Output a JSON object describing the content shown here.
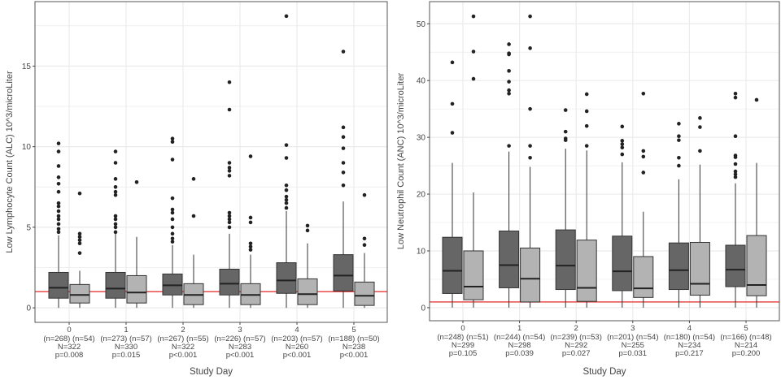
{
  "colors": {
    "group_a": "#666666",
    "group_b": "#b3b3b3",
    "reference_line": "#e84a4a",
    "outlier": "#222222",
    "grid": "#ebebeb"
  },
  "chart_data": [
    {
      "type": "boxplot",
      "ylabel": "Low Lymphocyte Count (ALC) 10^3/microLiter",
      "xlabel": "Study Day",
      "ylim": [
        -0.9,
        19
      ],
      "yticks": [
        0,
        5,
        10,
        15
      ],
      "grid": true,
      "reference_line": 1,
      "categories": [
        "0",
        "1",
        "2",
        "3",
        "4",
        "5"
      ],
      "group_labels": [
        "(n=268) (n=54)",
        "(n=273) (n=57)",
        "(n=267) (n=55)",
        "(n=226) (n=57)",
        "(n=203) (n=57)",
        "(n=188) (n=50)"
      ],
      "totals": [
        "N=322",
        "N=330",
        "N=322",
        "N=283",
        "N=260",
        "N=238"
      ],
      "pvalues": [
        "p=0.008",
        "p=0.015",
        "p<0.001",
        "p<0.001",
        "p<0.001",
        "p<0.001"
      ],
      "series": [
        {
          "boxes": [
            {
              "min": 0,
              "q1": 0.6,
              "median": 1.25,
              "q3": 2.2,
              "max": 4.5,
              "outliers": [
                4.7,
                4.9,
                5.2,
                5.5,
                5.7,
                6.0,
                6.3,
                6.5,
                7.2,
                7.7,
                8.1,
                8.8,
                9.7,
                10.2
              ]
            },
            {
              "min": 0,
              "q1": 0.6,
              "median": 1.2,
              "q3": 2.2,
              "max": 4.6,
              "outliers": [
                4.7,
                5.0,
                5.2,
                5.5,
                5.7,
                7.0,
                7.2,
                7.5,
                8.0,
                9.0,
                9.7
              ]
            },
            {
              "min": 0,
              "q1": 0.8,
              "median": 1.4,
              "q3": 2.1,
              "max": 3.9,
              "outliers": [
                4.1,
                4.3,
                4.6,
                5.0,
                5.5,
                5.9,
                6.1,
                6.8,
                9.2,
                10.3,
                10.5
              ]
            },
            {
              "min": 0,
              "q1": 0.8,
              "median": 1.5,
              "q3": 2.4,
              "max": 4.6,
              "outliers": [
                5.0,
                5.3,
                5.5,
                5.7,
                5.9,
                8.2,
                8.5,
                8.7,
                9.0,
                12.3,
                14.0
              ]
            },
            {
              "min": 0,
              "q1": 0.9,
              "median": 1.7,
              "q3": 2.8,
              "max": 6.0,
              "outliers": [
                6.2,
                6.5,
                6.7,
                6.9,
                7.3,
                7.6,
                9.3,
                10.1,
                18.1
              ]
            },
            {
              "min": 0,
              "q1": 1.05,
              "median": 2.0,
              "q3": 3.3,
              "max": 6.6,
              "outliers": [
                7.6,
                8.4,
                9.0,
                9.9,
                10.6,
                11.2,
                15.9
              ]
            }
          ]
        },
        {
          "boxes": [
            {
              "min": 0,
              "q1": 0.3,
              "median": 0.8,
              "q3": 1.45,
              "max": 2.3,
              "outliers": [
                3.4,
                4.0,
                4.2,
                4.4,
                4.6,
                7.1
              ]
            },
            {
              "min": 0,
              "q1": 0.3,
              "median": 0.95,
              "q3": 2.0,
              "max": 4.4,
              "outliers": [
                7.8
              ]
            },
            {
              "min": 0,
              "q1": 0.2,
              "median": 0.8,
              "q3": 1.5,
              "max": 3.3,
              "outliers": [
                5.7,
                8.0
              ]
            },
            {
              "min": 0,
              "q1": 0.2,
              "median": 0.8,
              "q3": 1.5,
              "max": 3.3,
              "outliers": [
                3.6,
                3.8,
                4.0,
                5.3,
                5.6,
                9.4
              ]
            },
            {
              "min": 0,
              "q1": 0.2,
              "median": 0.85,
              "q3": 1.8,
              "max": 4.0,
              "outliers": [
                4.8,
                5.1
              ]
            },
            {
              "min": 0,
              "q1": 0.15,
              "median": 0.75,
              "q3": 1.6,
              "max": 3.4,
              "outliers": [
                3.9,
                4.3,
                7.0
              ]
            }
          ]
        }
      ]
    },
    {
      "type": "boxplot",
      "ylabel": "Low Neutrophil Count (ANC) 10^3/microLiter",
      "xlabel": "Study Day",
      "ylim": [
        -2.3,
        53.9
      ],
      "yticks": [
        0,
        10,
        20,
        30,
        40,
        50
      ],
      "grid": true,
      "reference_line": 1,
      "categories": [
        "0",
        "1",
        "2",
        "3",
        "4",
        "5"
      ],
      "group_labels": [
        "(n=248) (n=51)",
        "(n=244) (n=54)",
        "(n=239) (n=53)",
        "(n=201) (n=54)",
        "(n=180) (n=54)",
        "(n=166) (n=48)"
      ],
      "totals": [
        "N=299",
        "N=298",
        "N=292",
        "N=255",
        "N=234",
        "N=214"
      ],
      "pvalues": [
        "p=0.105",
        "p=0.039",
        "p=0.027",
        "p=0.031",
        "p=0.217",
        "p=0.200"
      ],
      "series": [
        {
          "boxes": [
            {
              "min": 0,
              "q1": 2.5,
              "median": 6.5,
              "q3": 12.4,
              "max": 25.5,
              "outliers": [
                30.8,
                35.9,
                43.2
              ]
            },
            {
              "min": 0,
              "q1": 3.5,
              "median": 7.5,
              "q3": 13.5,
              "max": 27.5,
              "outliers": [
                28.5,
                37.7,
                38.3,
                39.8,
                41.7,
                44.6,
                44.8,
                46.4
              ]
            },
            {
              "min": 0,
              "q1": 3.2,
              "median": 7.4,
              "q3": 13.7,
              "max": 28.0,
              "outliers": [
                29.5,
                29.8,
                31.0,
                34.8
              ]
            },
            {
              "min": 0,
              "q1": 3.0,
              "median": 6.4,
              "q3": 12.6,
              "max": 25.6,
              "outliers": [
                27.0,
                28.2,
                28.8,
                29.4,
                31.9
              ]
            },
            {
              "min": 0,
              "q1": 3.2,
              "median": 6.6,
              "q3": 11.4,
              "max": 22.6,
              "outliers": [
                25.0,
                26.4,
                29.5,
                30.2,
                32.4
              ]
            },
            {
              "min": 0,
              "q1": 3.7,
              "median": 6.7,
              "q3": 11.0,
              "max": 21.9,
              "outliers": [
                23.0,
                23.5,
                24.0,
                25.3,
                26.5,
                26.8,
                30.2,
                37.0,
                37.7
              ]
            }
          ]
        },
        {
          "boxes": [
            {
              "min": 0,
              "q1": 1.4,
              "median": 3.7,
              "q3": 10.0,
              "max": 20.3,
              "outliers": [
                40.3,
                45.1,
                51.3
              ]
            },
            {
              "min": 0,
              "q1": 1.0,
              "median": 5.1,
              "q3": 10.5,
              "max": 24.8,
              "outliers": [
                26.4,
                28.5,
                35.0,
                45.7,
                51.3
              ]
            },
            {
              "min": 0,
              "q1": 1.1,
              "median": 3.5,
              "q3": 11.9,
              "max": 27.7,
              "outliers": [
                28.5,
                32.0,
                34.6,
                37.6
              ]
            },
            {
              "min": 0,
              "q1": 1.8,
              "median": 3.4,
              "q3": 9.0,
              "max": 16.9,
              "outliers": [
                23.8,
                26.6,
                27.6,
                37.7
              ]
            },
            {
              "min": 0,
              "q1": 2.2,
              "median": 4.2,
              "q3": 11.5,
              "max": 25.2,
              "outliers": [
                27.6,
                31.8,
                33.4
              ]
            },
            {
              "min": 0,
              "q1": 2.1,
              "median": 4.0,
              "q3": 12.7,
              "max": 25.5,
              "outliers": [
                36.6
              ]
            }
          ]
        }
      ]
    }
  ]
}
